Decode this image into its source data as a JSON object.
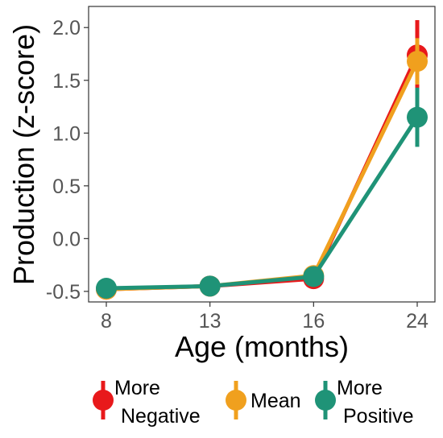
{
  "chart_data": {
    "type": "line",
    "xlabel": "Age (months)",
    "ylabel": "Production (z-score)",
    "categories": [
      "8",
      "13",
      "16",
      "24"
    ],
    "ylim": [
      -0.6,
      2.2
    ],
    "yticks": [
      "-0.5",
      "0.0",
      "0.5",
      "1.0",
      "1.5",
      "2.0"
    ],
    "grid": false,
    "legend_position": "bottom",
    "series": [
      {
        "key": "negative",
        "name": "More Negative",
        "name_lines": [
          "More",
          "Negative"
        ],
        "color": "#e8191b",
        "values": [
          -0.48,
          -0.45,
          -0.38,
          1.74
        ],
        "error": [
          0.02,
          0.02,
          0.03,
          0.33
        ]
      },
      {
        "key": "mean",
        "name": "Mean",
        "name_lines": [
          "Mean"
        ],
        "color": "#f0a01e",
        "values": [
          -0.48,
          -0.45,
          -0.35,
          1.68
        ],
        "error": [
          0.02,
          0.02,
          0.03,
          0.22
        ]
      },
      {
        "key": "positive",
        "name": "More Positive",
        "name_lines": [
          "More",
          "Positive"
        ],
        "color": "#1f9377",
        "values": [
          -0.47,
          -0.45,
          -0.36,
          1.15
        ],
        "error": [
          0.02,
          0.02,
          0.03,
          0.28
        ]
      }
    ]
  }
}
